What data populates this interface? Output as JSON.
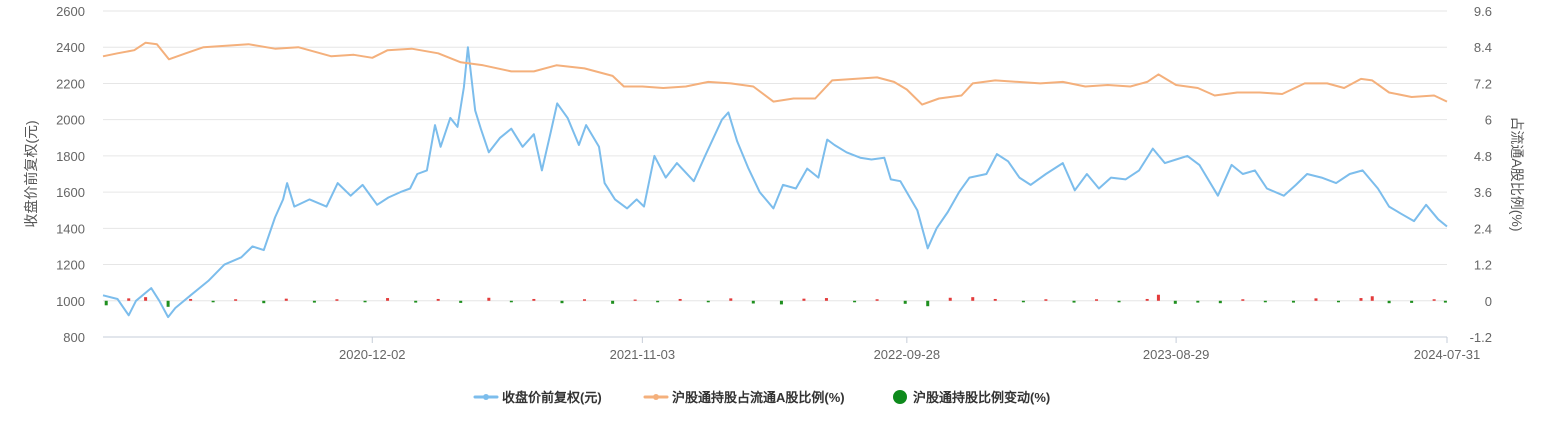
{
  "chart_data": {
    "type": "line",
    "left_axis": {
      "label": "收盘价前复权(元)",
      "ylim": [
        800,
        2600
      ],
      "ticks": [
        "800",
        "1000",
        "1200",
        "1400",
        "1600",
        "1800",
        "2000",
        "2200",
        "2400",
        "2600"
      ]
    },
    "right_axis": {
      "label": "占流通A股比例(%)",
      "ylim": [
        -1.2,
        9.6
      ],
      "ticks": [
        "-1.2",
        "0",
        "1.2",
        "2.4",
        "3.6",
        "4.8",
        "6",
        "7.2",
        "8.4",
        "9.6"
      ]
    },
    "x_axis": {
      "range": [
        "2020-01-02",
        "2024-07-31"
      ],
      "tick_labels": [
        "2020-12-02",
        "2021-11-03",
        "2022-09-28",
        "2023-08-29",
        "2024-07-31"
      ]
    },
    "grid": "horizontal",
    "legend_position": "bottom-center",
    "series": [
      {
        "name": "收盘价前复权(元)",
        "axis": "left",
        "color": "#7cbdec",
        "points": [
          [
            "2020-01-02",
            1030
          ],
          [
            "2020-01-20",
            1010
          ],
          [
            "2020-02-03",
            920
          ],
          [
            "2020-02-12",
            1000
          ],
          [
            "2020-03-02",
            1070
          ],
          [
            "2020-03-12",
            1000
          ],
          [
            "2020-03-23",
            910
          ],
          [
            "2020-04-01",
            960
          ],
          [
            "2020-04-20",
            1030
          ],
          [
            "2020-05-12",
            1110
          ],
          [
            "2020-06-01",
            1200
          ],
          [
            "2020-06-22",
            1240
          ],
          [
            "2020-07-06",
            1300
          ],
          [
            "2020-07-20",
            1280
          ],
          [
            "2020-08-03",
            1460
          ],
          [
            "2020-08-13",
            1560
          ],
          [
            "2020-08-18",
            1650
          ],
          [
            "2020-08-27",
            1520
          ],
          [
            "2020-09-15",
            1560
          ],
          [
            "2020-10-06",
            1520
          ],
          [
            "2020-10-20",
            1650
          ],
          [
            "2020-11-05",
            1580
          ],
          [
            "2020-11-20",
            1640
          ],
          [
            "2020-12-08",
            1530
          ],
          [
            "2020-12-22",
            1570
          ],
          [
            "2021-01-06",
            1600
          ],
          [
            "2021-01-18",
            1620
          ],
          [
            "2021-01-27",
            1700
          ],
          [
            "2021-02-08",
            1720
          ],
          [
            "2021-02-18",
            1970
          ],
          [
            "2021-02-25",
            1850
          ],
          [
            "2021-03-09",
            2010
          ],
          [
            "2021-03-18",
            1960
          ],
          [
            "2021-03-26",
            2180
          ],
          [
            "2021-03-31",
            2400
          ],
          [
            "2021-04-09",
            2050
          ],
          [
            "2021-04-16",
            1950
          ],
          [
            "2021-04-26",
            1820
          ],
          [
            "2021-05-10",
            1900
          ],
          [
            "2021-05-24",
            1950
          ],
          [
            "2021-06-07",
            1850
          ],
          [
            "2021-06-21",
            1920
          ],
          [
            "2021-07-01",
            1720
          ],
          [
            "2021-07-12",
            1930
          ],
          [
            "2021-07-20",
            2090
          ],
          [
            "2021-08-02",
            2010
          ],
          [
            "2021-08-16",
            1860
          ],
          [
            "2021-08-25",
            1970
          ],
          [
            "2021-09-10",
            1850
          ],
          [
            "2021-09-17",
            1650
          ],
          [
            "2021-09-30",
            1560
          ],
          [
            "2021-10-15",
            1510
          ],
          [
            "2021-10-27",
            1560
          ],
          [
            "2021-11-05",
            1520
          ],
          [
            "2021-11-18",
            1800
          ],
          [
            "2021-12-02",
            1680
          ],
          [
            "2021-12-16",
            1760
          ],
          [
            "2022-01-06",
            1660
          ],
          [
            "2022-01-20",
            1800
          ],
          [
            "2022-02-10",
            2000
          ],
          [
            "2022-02-18",
            2040
          ],
          [
            "2022-03-01",
            1880
          ],
          [
            "2022-03-15",
            1730
          ],
          [
            "2022-03-29",
            1600
          ],
          [
            "2022-04-15",
            1510
          ],
          [
            "2022-04-27",
            1640
          ],
          [
            "2022-05-13",
            1620
          ],
          [
            "2022-05-27",
            1730
          ],
          [
            "2022-06-10",
            1680
          ],
          [
            "2022-06-21",
            1890
          ],
          [
            "2022-06-30",
            1860
          ],
          [
            "2022-07-15",
            1820
          ],
          [
            "2022-08-01",
            1790
          ],
          [
            "2022-08-15",
            1780
          ],
          [
            "2022-08-31",
            1790
          ],
          [
            "2022-09-08",
            1670
          ],
          [
            "2022-09-20",
            1660
          ],
          [
            "2022-10-11",
            1500
          ],
          [
            "2022-10-24",
            1290
          ],
          [
            "2022-11-04",
            1400
          ],
          [
            "2022-11-18",
            1490
          ],
          [
            "2022-12-02",
            1600
          ],
          [
            "2022-12-15",
            1680
          ],
          [
            "2023-01-05",
            1700
          ],
          [
            "2023-01-18",
            1810
          ],
          [
            "2023-02-01",
            1770
          ],
          [
            "2023-02-15",
            1680
          ],
          [
            "2023-03-01",
            1640
          ],
          [
            "2023-03-20",
            1700
          ],
          [
            "2023-04-10",
            1760
          ],
          [
            "2023-04-25",
            1610
          ],
          [
            "2023-05-10",
            1700
          ],
          [
            "2023-05-25",
            1620
          ],
          [
            "2023-06-09",
            1680
          ],
          [
            "2023-06-27",
            1670
          ],
          [
            "2023-07-14",
            1720
          ],
          [
            "2023-07-31",
            1840
          ],
          [
            "2023-08-15",
            1760
          ],
          [
            "2023-08-29",
            1780
          ],
          [
            "2023-09-12",
            1800
          ],
          [
            "2023-09-27",
            1750
          ],
          [
            "2023-10-20",
            1580
          ],
          [
            "2023-11-06",
            1750
          ],
          [
            "2023-11-20",
            1700
          ],
          [
            "2023-12-05",
            1720
          ],
          [
            "2023-12-20",
            1620
          ],
          [
            "2024-01-10",
            1580
          ],
          [
            "2024-01-25",
            1640
          ],
          [
            "2024-02-08",
            1700
          ],
          [
            "2024-02-26",
            1680
          ],
          [
            "2024-03-15",
            1650
          ],
          [
            "2024-04-01",
            1700
          ],
          [
            "2024-04-17",
            1720
          ],
          [
            "2024-05-06",
            1620
          ],
          [
            "2024-05-20",
            1520
          ],
          [
            "2024-06-04",
            1480
          ],
          [
            "2024-06-20",
            1440
          ],
          [
            "2024-07-05",
            1530
          ],
          [
            "2024-07-20",
            1450
          ],
          [
            "2024-07-31",
            1410
          ]
        ]
      },
      {
        "name": "沪股通持股占流通A股比例(%)",
        "axis": "right",
        "color": "#f4b07c",
        "points": [
          [
            "2020-01-02",
            8.1
          ],
          [
            "2020-01-20",
            8.2
          ],
          [
            "2020-02-10",
            8.3
          ],
          [
            "2020-02-24",
            8.55
          ],
          [
            "2020-03-09",
            8.5
          ],
          [
            "2020-03-24",
            8.0
          ],
          [
            "2020-04-14",
            8.2
          ],
          [
            "2020-05-06",
            8.4
          ],
          [
            "2020-06-03",
            8.45
          ],
          [
            "2020-07-01",
            8.5
          ],
          [
            "2020-08-03",
            8.35
          ],
          [
            "2020-09-01",
            8.4
          ],
          [
            "2020-10-12",
            8.1
          ],
          [
            "2020-11-09",
            8.15
          ],
          [
            "2020-12-02",
            8.05
          ],
          [
            "2020-12-21",
            8.3
          ],
          [
            "2021-01-20",
            8.35
          ],
          [
            "2021-02-22",
            8.2
          ],
          [
            "2021-03-22",
            7.9
          ],
          [
            "2021-04-19",
            7.8
          ],
          [
            "2021-05-24",
            7.6
          ],
          [
            "2021-06-21",
            7.6
          ],
          [
            "2021-07-19",
            7.8
          ],
          [
            "2021-08-23",
            7.7
          ],
          [
            "2021-09-27",
            7.45
          ],
          [
            "2021-10-11",
            7.1
          ],
          [
            "2021-11-03",
            7.1
          ],
          [
            "2021-11-29",
            7.05
          ],
          [
            "2021-12-27",
            7.1
          ],
          [
            "2022-01-24",
            7.25
          ],
          [
            "2022-02-21",
            7.2
          ],
          [
            "2022-03-21",
            7.1
          ],
          [
            "2022-04-15",
            6.6
          ],
          [
            "2022-05-10",
            6.7
          ],
          [
            "2022-06-06",
            6.7
          ],
          [
            "2022-06-27",
            7.3
          ],
          [
            "2022-07-25",
            7.35
          ],
          [
            "2022-08-22",
            7.4
          ],
          [
            "2022-09-12",
            7.25
          ],
          [
            "2022-09-28",
            7.0
          ],
          [
            "2022-10-17",
            6.5
          ],
          [
            "2022-11-07",
            6.7
          ],
          [
            "2022-12-05",
            6.8
          ],
          [
            "2022-12-19",
            7.2
          ],
          [
            "2023-01-16",
            7.3
          ],
          [
            "2023-02-13",
            7.25
          ],
          [
            "2023-03-13",
            7.2
          ],
          [
            "2023-04-10",
            7.25
          ],
          [
            "2023-05-08",
            7.1
          ],
          [
            "2023-06-05",
            7.15
          ],
          [
            "2023-07-03",
            7.1
          ],
          [
            "2023-07-24",
            7.25
          ],
          [
            "2023-08-07",
            7.5
          ],
          [
            "2023-08-29",
            7.15
          ],
          [
            "2023-09-25",
            7.05
          ],
          [
            "2023-10-16",
            6.8
          ],
          [
            "2023-11-13",
            6.9
          ],
          [
            "2023-12-11",
            6.9
          ],
          [
            "2024-01-08",
            6.85
          ],
          [
            "2024-02-05",
            7.2
          ],
          [
            "2024-03-04",
            7.2
          ],
          [
            "2024-03-25",
            7.05
          ],
          [
            "2024-04-15",
            7.35
          ],
          [
            "2024-04-29",
            7.3
          ],
          [
            "2024-05-20",
            6.9
          ],
          [
            "2024-06-17",
            6.75
          ],
          [
            "2024-07-15",
            6.8
          ],
          [
            "2024-07-31",
            6.6
          ]
        ]
      },
      {
        "name": "沪股通持股比例变动(%)",
        "axis": "right",
        "type": "bar",
        "color_positive": "#e33b3b",
        "color_negative": "#1f8f1f",
        "legend_color": "#0e8a1c",
        "points": [
          [
            "2020-01-06",
            -0.15
          ],
          [
            "2020-02-03",
            0.08
          ],
          [
            "2020-02-24",
            0.12
          ],
          [
            "2020-03-23",
            -0.2
          ],
          [
            "2020-04-20",
            0.06
          ],
          [
            "2020-05-18",
            -0.05
          ],
          [
            "2020-06-15",
            0.05
          ],
          [
            "2020-07-20",
            -0.08
          ],
          [
            "2020-08-17",
            0.07
          ],
          [
            "2020-09-21",
            -0.06
          ],
          [
            "2020-10-19",
            0.05
          ],
          [
            "2020-11-23",
            -0.05
          ],
          [
            "2020-12-21",
            0.09
          ],
          [
            "2021-01-25",
            -0.06
          ],
          [
            "2021-02-22",
            0.06
          ],
          [
            "2021-03-22",
            -0.07
          ],
          [
            "2021-04-26",
            0.1
          ],
          [
            "2021-05-24",
            -0.05
          ],
          [
            "2021-06-21",
            0.06
          ],
          [
            "2021-07-26",
            -0.08
          ],
          [
            "2021-08-23",
            0.05
          ],
          [
            "2021-09-27",
            -0.1
          ],
          [
            "2021-10-25",
            0.04
          ],
          [
            "2021-11-22",
            -0.05
          ],
          [
            "2021-12-20",
            0.06
          ],
          [
            "2022-01-24",
            -0.05
          ],
          [
            "2022-02-21",
            0.08
          ],
          [
            "2022-03-21",
            -0.09
          ],
          [
            "2022-04-25",
            -0.12
          ],
          [
            "2022-05-23",
            0.07
          ],
          [
            "2022-06-20",
            0.09
          ],
          [
            "2022-07-25",
            -0.05
          ],
          [
            "2022-08-22",
            0.05
          ],
          [
            "2022-09-26",
            -0.1
          ],
          [
            "2022-10-24",
            -0.18
          ],
          [
            "2022-11-21",
            0.1
          ],
          [
            "2022-12-19",
            0.12
          ],
          [
            "2023-01-16",
            0.06
          ],
          [
            "2023-02-20",
            -0.05
          ],
          [
            "2023-03-20",
            0.05
          ],
          [
            "2023-04-24",
            -0.06
          ],
          [
            "2023-05-22",
            0.05
          ],
          [
            "2023-06-19",
            -0.05
          ],
          [
            "2023-07-24",
            0.06
          ],
          [
            "2023-08-07",
            0.2
          ],
          [
            "2023-08-28",
            -0.1
          ],
          [
            "2023-09-25",
            -0.06
          ],
          [
            "2023-10-23",
            -0.08
          ],
          [
            "2023-11-20",
            0.05
          ],
          [
            "2023-12-18",
            -0.05
          ],
          [
            "2024-01-22",
            -0.06
          ],
          [
            "2024-02-19",
            0.08
          ],
          [
            "2024-03-18",
            -0.05
          ],
          [
            "2024-04-15",
            0.09
          ],
          [
            "2024-04-29",
            0.15
          ],
          [
            "2024-05-20",
            -0.08
          ],
          [
            "2024-06-17",
            -0.07
          ],
          [
            "2024-07-15",
            0.05
          ],
          [
            "2024-07-29",
            -0.06
          ]
        ]
      }
    ]
  }
}
